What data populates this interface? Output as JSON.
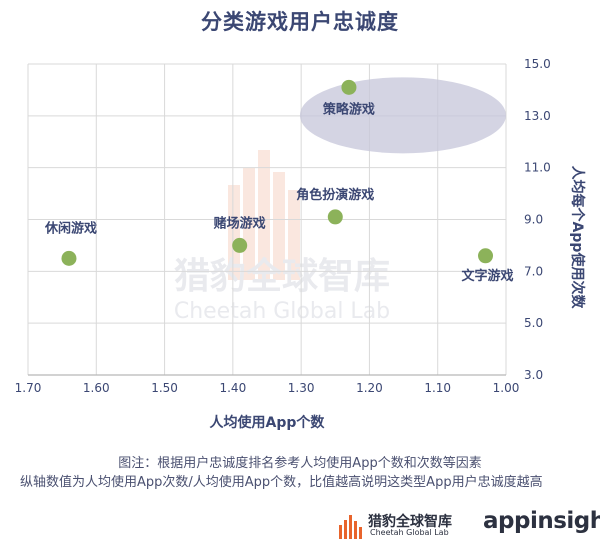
{
  "title": "分类游戏用户忠诚度",
  "chart_data": {
    "type": "scatter",
    "title": "分类游戏用户忠诚度",
    "xlabel": "人均使用App个数",
    "ylabel": "人均每个App使用次数",
    "xlim": [
      1.7,
      1.0
    ],
    "x_reversed": true,
    "ylim": [
      3.0,
      15.0
    ],
    "x_ticks": [
      "1.70",
      "1.60",
      "1.50",
      "1.40",
      "1.30",
      "1.20",
      "1.10",
      "1.00"
    ],
    "y_ticks": [
      "15.0",
      "13.0",
      "11.0",
      "9.0",
      "7.0",
      "5.0",
      "3.0"
    ],
    "grid": true,
    "y_axis_position": "right",
    "points": [
      {
        "label": "休闲游戏",
        "x": 1.64,
        "y": 7.5
      },
      {
        "label": "赌场游戏",
        "x": 1.39,
        "y": 8.0
      },
      {
        "label": "角色扮演游戏",
        "x": 1.25,
        "y": 9.1
      },
      {
        "label": "策略游戏",
        "x": 1.23,
        "y": 14.1
      },
      {
        "label": "文字游戏",
        "x": 1.03,
        "y": 7.6
      }
    ],
    "highlight": "策略游戏",
    "point_color": "#8cb25a",
    "highlight_color": "#c5c6da"
  },
  "notes": {
    "line1": "图注：根据用户忠诚度排名参考人均使用App个数和次数等因素",
    "line2": "纵轴数值为人均使用App次数/人均使用App个数，比值越高说明这类型App用户忠诚度越高"
  },
  "watermark": {
    "cn": "猎豹全球智库",
    "en": "Cheetah Global Lab"
  },
  "brands": {
    "cheetah_cn": "猎豹全球智库",
    "cheetah_en": "Cheetah Global Lab",
    "appinsight": "appinsight"
  }
}
